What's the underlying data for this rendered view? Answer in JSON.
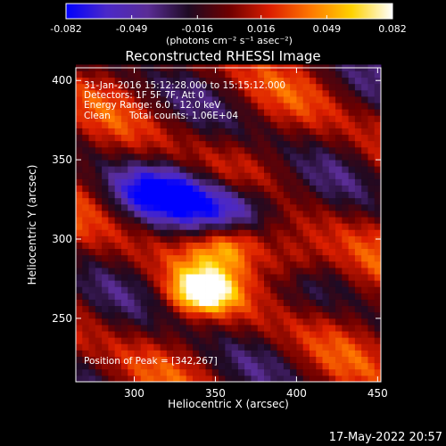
{
  "chart_data": {
    "type": "heatmap",
    "title": "Reconstructed RHESSI Image",
    "xlabel": "Heliocentric X (arcsec)",
    "ylabel": "Heliocentric Y (arcsec)",
    "xlim": [
      264,
      452
    ],
    "ylim": [
      210,
      408
    ],
    "x_ticks": [
      300,
      350,
      400,
      450
    ],
    "y_ticks": [
      250,
      300,
      350,
      400
    ],
    "colorbar": {
      "min": -0.082,
      "max": 0.082,
      "ticks": [
        "-0.082",
        "-0.049",
        "-0.016",
        "0.016",
        "0.049",
        "0.082"
      ],
      "unit_label": "(photons cm⁻² s⁻¹ asec⁻²)",
      "colors": [
        "#0000ff",
        "#4b28c8",
        "#5a2d96",
        "#1e0a23",
        "#6e0000",
        "#dc1e00",
        "#ff7800",
        "#ffd200",
        "#ffffff"
      ]
    },
    "annotations": [
      "31-Jan-2016 15:12:28.000 to 15:15:12.000",
      "Detectors: 1F 5F 7F, Att 0",
      "Energy Range: 6.0 - 12.0 keV",
      "Clean",
      "Total counts: 1.06E+04"
    ],
    "peak_label": "Position of Peak = [342,267]",
    "peak": [
      342,
      267
    ],
    "bright_sources": [
      {
        "x": 342,
        "y": 267,
        "value": 0.082
      },
      {
        "x": 358,
        "y": 296,
        "value": 0.06
      },
      {
        "x": 395,
        "y": 285,
        "value": 0.04
      }
    ],
    "dark_sources": [
      {
        "x": 318,
        "y": 330,
        "value": -0.065
      },
      {
        "x": 360,
        "y": 320,
        "value": -0.07
      }
    ]
  },
  "footer": {
    "timestamp": "17-May-2022 20:57"
  }
}
